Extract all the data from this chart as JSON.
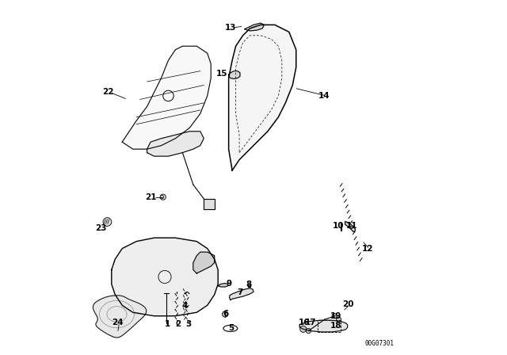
{
  "background_color": "#ffffff",
  "line_color": "#000000",
  "diagram_id": "00G07301"
}
